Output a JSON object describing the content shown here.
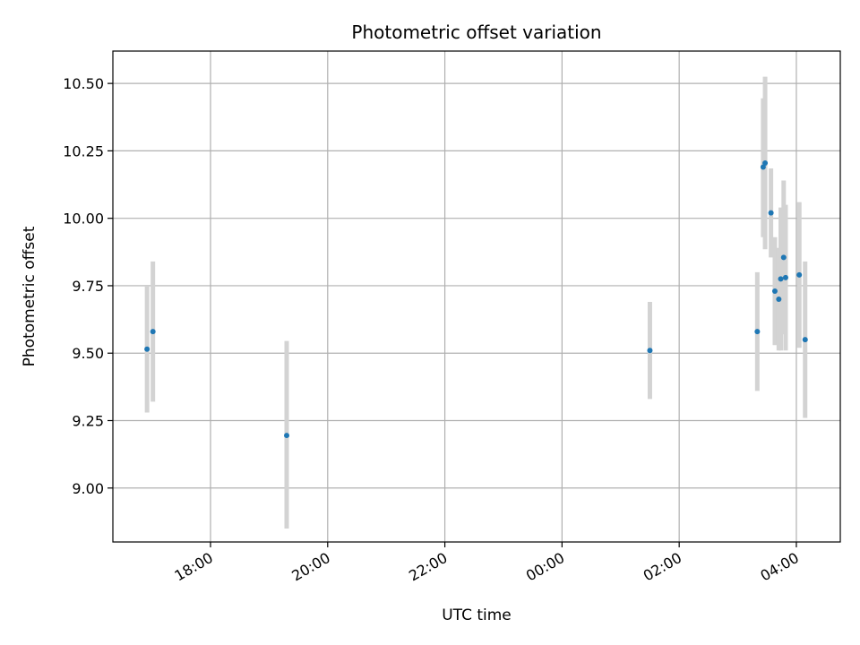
{
  "chart_data": {
    "type": "scatter",
    "title": "Photometric offset variation",
    "xlabel": "UTC time",
    "ylabel": "Photometric offset",
    "x_ticks": [
      "18:00",
      "20:00",
      "22:00",
      "00:00",
      "02:00",
      "04:00"
    ],
    "y_ticks": [
      "9.00",
      "9.25",
      "9.50",
      "9.75",
      "10.00",
      "10.25",
      "10.50"
    ],
    "y_tick_values": [
      9.0,
      9.25,
      9.5,
      9.75,
      10.0,
      10.25,
      10.5
    ],
    "xlim": [
      "16:20",
      "04:45 (+1 day)"
    ],
    "ylim": [
      8.8,
      10.62
    ],
    "grid": true,
    "point_color": "#1f77b4",
    "errorbar_color": "#d3d3d3",
    "points": [
      {
        "time": "16:55",
        "y": 9.515,
        "ylo": 9.28,
        "yhi": 9.75
      },
      {
        "time": "17:01",
        "y": 9.58,
        "ylo": 9.32,
        "yhi": 9.84
      },
      {
        "time": "19:18",
        "y": 9.195,
        "ylo": 8.85,
        "yhi": 9.545
      },
      {
        "time": "01:30",
        "y": 9.51,
        "ylo": 9.33,
        "yhi": 9.69
      },
      {
        "time": "03:20",
        "y": 9.58,
        "ylo": 9.36,
        "yhi": 9.8
      },
      {
        "time": "03:26",
        "y": 10.19,
        "ylo": 9.93,
        "yhi": 10.445
      },
      {
        "time": "03:28",
        "y": 10.205,
        "ylo": 9.885,
        "yhi": 10.525
      },
      {
        "time": "03:34",
        "y": 10.02,
        "ylo": 9.855,
        "yhi": 10.185
      },
      {
        "time": "03:38",
        "y": 9.73,
        "ylo": 9.53,
        "yhi": 9.93
      },
      {
        "time": "03:42",
        "y": 9.7,
        "ylo": 9.51,
        "yhi": 9.89
      },
      {
        "time": "03:44",
        "y": 9.775,
        "ylo": 9.51,
        "yhi": 10.04
      },
      {
        "time": "03:47",
        "y": 9.855,
        "ylo": 9.57,
        "yhi": 10.14
      },
      {
        "time": "03:49",
        "y": 9.78,
        "ylo": 9.51,
        "yhi": 10.05
      },
      {
        "time": "04:03",
        "y": 9.79,
        "ylo": 9.52,
        "yhi": 10.06
      },
      {
        "time": "04:09",
        "y": 9.55,
        "ylo": 9.26,
        "yhi": 9.84
      }
    ]
  }
}
